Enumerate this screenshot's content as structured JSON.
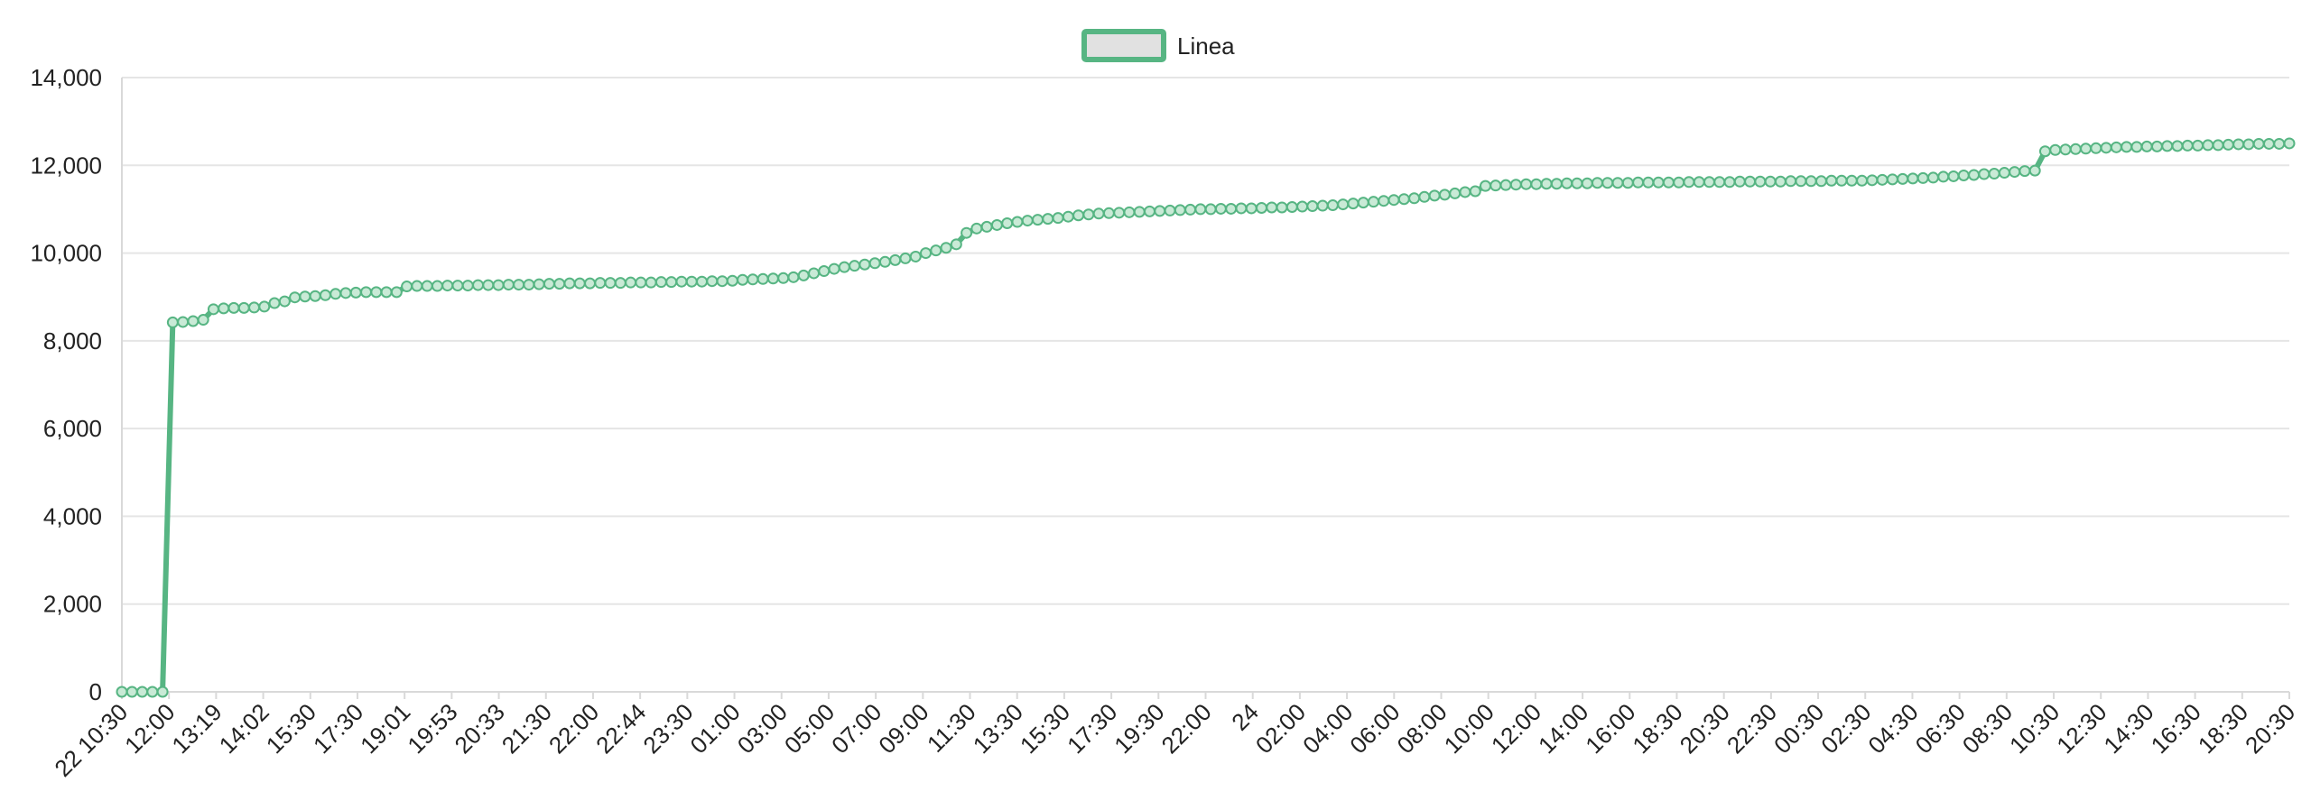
{
  "chart_data": {
    "type": "line",
    "grid": true,
    "legend_position": "top-center",
    "colors": {
      "series_line": "#57b583",
      "series_point_fill": "#c9ead6",
      "legend_box_fill": "#e1e1e1",
      "grid": "#e5e5e5",
      "text": "#222222"
    },
    "ylim": [
      0,
      14000
    ],
    "y_ticks": [
      "0",
      "2,000",
      "4,000",
      "6,000",
      "8,000",
      "10,000",
      "12,000",
      "14,000"
    ],
    "x_tick_labels": [
      "22 10:30",
      "12:00",
      "13:19",
      "14:02",
      "15:30",
      "17:30",
      "19:01",
      "19:53",
      "20:33",
      "21:30",
      "22:00",
      "22:44",
      "23:30",
      "01:00",
      "03:00",
      "05:00",
      "07:00",
      "09:00",
      "11:30",
      "13:30",
      "15:30",
      "17:30",
      "19:30",
      "22:00",
      "24",
      "02:00",
      "04:00",
      "06:00",
      "08:00",
      "10:00",
      "12:00",
      "14:00",
      "16:00",
      "18:30",
      "20:30",
      "22:30",
      "00:30",
      "02:30",
      "04:30",
      "06:30",
      "08:30",
      "10:30",
      "12:30",
      "14:30",
      "16:30",
      "18:30",
      "20:30"
    ],
    "series": [
      {
        "name": "Linea",
        "values": [
          0,
          0,
          0,
          0,
          0,
          8420,
          8430,
          8450,
          8480,
          8720,
          8740,
          8750,
          8750,
          8760,
          8780,
          8860,
          8900,
          8990,
          9010,
          9020,
          9040,
          9070,
          9090,
          9100,
          9110,
          9110,
          9110,
          9110,
          9240,
          9250,
          9250,
          9250,
          9260,
          9260,
          9260,
          9270,
          9270,
          9270,
          9280,
          9280,
          9280,
          9290,
          9300,
          9300,
          9310,
          9310,
          9310,
          9320,
          9320,
          9320,
          9330,
          9330,
          9330,
          9340,
          9340,
          9350,
          9350,
          9350,
          9360,
          9360,
          9370,
          9390,
          9400,
          9410,
          9420,
          9430,
          9450,
          9490,
          9540,
          9590,
          9640,
          9680,
          9710,
          9740,
          9770,
          9800,
          9840,
          9880,
          9920,
          10000,
          10060,
          10120,
          10200,
          10460,
          10560,
          10600,
          10640,
          10680,
          10710,
          10740,
          10760,
          10780,
          10800,
          10830,
          10860,
          10880,
          10900,
          10910,
          10920,
          10930,
          10940,
          10950,
          10960,
          10970,
          10980,
          10990,
          11000,
          11000,
          11010,
          11010,
          11020,
          11020,
          11030,
          11040,
          11040,
          11050,
          11060,
          11070,
          11080,
          11090,
          11110,
          11130,
          11150,
          11170,
          11190,
          11210,
          11230,
          11250,
          11280,
          11310,
          11330,
          11360,
          11390,
          11410,
          11530,
          11540,
          11550,
          11560,
          11570,
          11570,
          11580,
          11580,
          11590,
          11590,
          11590,
          11600,
          11600,
          11600,
          11600,
          11610,
          11610,
          11610,
          11610,
          11610,
          11620,
          11620,
          11620,
          11620,
          11620,
          11630,
          11630,
          11630,
          11630,
          11630,
          11640,
          11640,
          11640,
          11640,
          11650,
          11650,
          11650,
          11650,
          11660,
          11670,
          11680,
          11690,
          11700,
          11710,
          11720,
          11740,
          11750,
          11770,
          11780,
          11800,
          11810,
          11830,
          11850,
          11870,
          11880,
          12320,
          12350,
          12360,
          12370,
          12380,
          12390,
          12400,
          12410,
          12420,
          12420,
          12430,
          12430,
          12440,
          12440,
          12450,
          12450,
          12460,
          12460,
          12470,
          12480,
          12480,
          12490,
          12490,
          12490,
          12500
        ]
      }
    ]
  }
}
